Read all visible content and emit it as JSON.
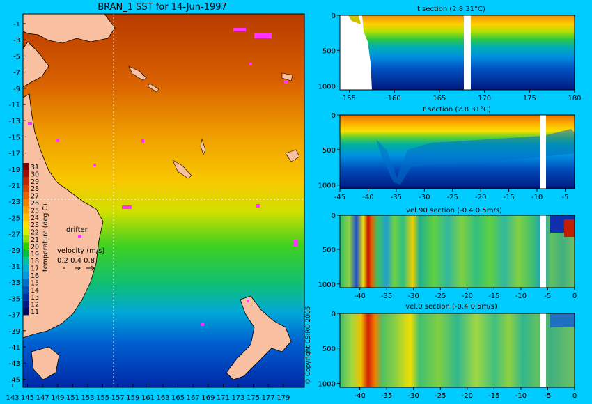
{
  "colors": {
    "background": "#00ccff",
    "land": "#f8c0a0",
    "drifter": "#ff33ff",
    "dashed_line": "#ffffff"
  },
  "map": {
    "title": "BRAN_1 SST for 14-Jun-1997",
    "lat_ticks": [
      "-1",
      "-3",
      "-5",
      "-7",
      "-9",
      "-11",
      "-13",
      "-15",
      "-17",
      "-19",
      "-21",
      "-23",
      "-25",
      "-27",
      "-29",
      "-31",
      "-33",
      "-35",
      "-37",
      "-39",
      "-41",
      "-43",
      "-45"
    ],
    "lon_ticks": [
      "143",
      "145",
      "147",
      "149",
      "151",
      "153",
      "155",
      "157",
      "159",
      "161",
      "163",
      "165",
      "167",
      "169",
      "171",
      "173",
      "175",
      "177",
      "179"
    ],
    "colorbar": {
      "label": "temperature (deg C)",
      "values": [
        "31",
        "30",
        "29",
        "28",
        "27",
        "26",
        "25",
        "24",
        "23",
        "22",
        "21",
        "20",
        "19",
        "18",
        "17",
        "16",
        "15",
        "14",
        "13",
        "12",
        "11"
      ],
      "colors": [
        "#7a0000",
        "#a01000",
        "#c02800",
        "#d84000",
        "#e86000",
        "#f08000",
        "#f8a000",
        "#ffc000",
        "#ffe000",
        "#d8f000",
        "#90e000",
        "#30d000",
        "#00c040",
        "#00c0a0",
        "#00b0d0",
        "#0098e0",
        "#0070d0",
        "#0050b8",
        "#0030a0",
        "#001a88",
        "#000a60"
      ]
    },
    "drifter_label": "drifter",
    "velocity_label": "velocity (m/s)",
    "velocity_scale": "0.2 0.4 0.8"
  },
  "copyright": "© Copyright CSIRO 2005",
  "panels": [
    {
      "id": "p1",
      "title": "t section (2.8      31°C)",
      "y_ticks": [
        "0",
        "500",
        "1000"
      ],
      "x_ticks": [
        "155",
        "160",
        "165",
        "170",
        "175",
        "180"
      ]
    },
    {
      "id": "p2",
      "title": "t section (2.8      31°C)",
      "y_ticks": [
        "0",
        "500",
        "1000"
      ],
      "x_ticks": [
        "-45",
        "-40",
        "-35",
        "-30",
        "-25",
        "-20",
        "-15",
        "-10",
        "-5"
      ]
    },
    {
      "id": "p3",
      "title": "vel.90 section (-0.4      0.5m/s)",
      "y_ticks": [
        "0",
        "500",
        "1000"
      ],
      "x_ticks": [
        "-40",
        "-35",
        "-30",
        "-25",
        "-20",
        "-15",
        "-10",
        "-5",
        "0"
      ]
    },
    {
      "id": "p4",
      "title": "vel.0 section (-0.4      0.5m/s)",
      "y_ticks": [
        "0",
        "500",
        "1000"
      ],
      "x_ticks": [
        "-40",
        "-35",
        "-30",
        "-25",
        "-20",
        "-15",
        "-10",
        "-5",
        "0"
      ]
    }
  ]
}
